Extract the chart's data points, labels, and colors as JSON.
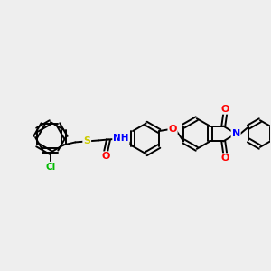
{
  "background_color": "#eeeeee",
  "bond_color": "#000000",
  "atom_colors": {
    "Cl": "#00bb00",
    "S": "#cccc00",
    "N": "#0000ff",
    "O": "#ff0000",
    "C": "#000000",
    "H": "#000000"
  },
  "figsize": [
    3.0,
    3.0
  ],
  "dpi": 100
}
